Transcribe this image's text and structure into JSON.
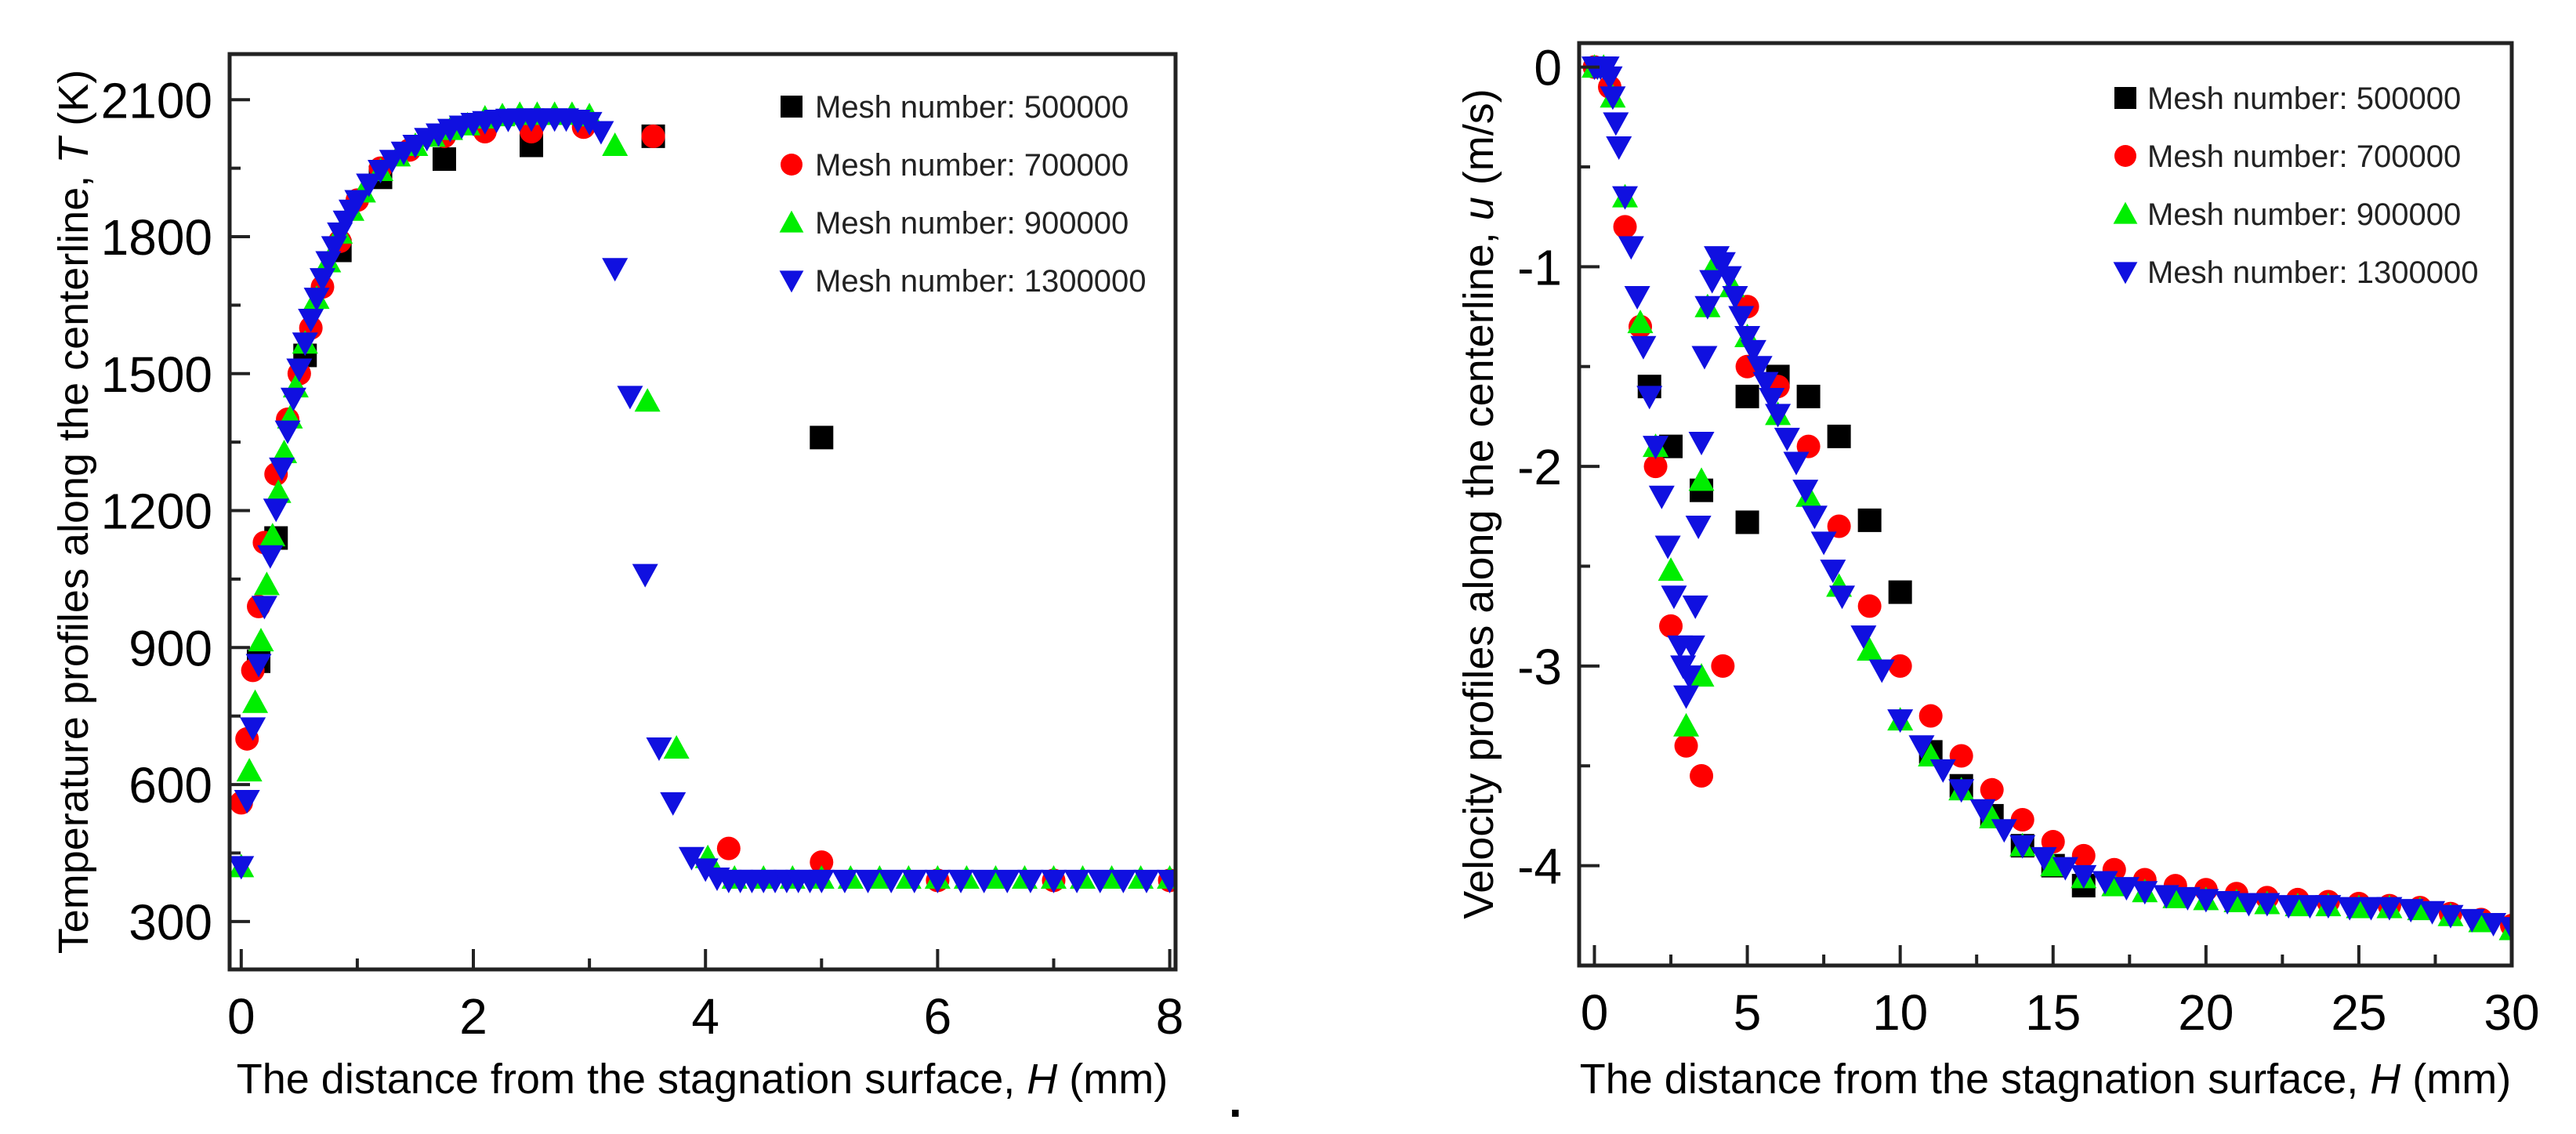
{
  "chart_data": [
    {
      "type": "scatter",
      "title": "",
      "xlabel": {
        "prefix": "The distance from the stagnation surface, ",
        "var": "H",
        "unit": " (mm)"
      },
      "ylabel": {
        "prefix": "Temperature profiles along the centerline, ",
        "var": "T",
        "unit": " (K)"
      },
      "xlim": [
        -0.1,
        8.05
      ],
      "ylim": [
        195,
        2200
      ],
      "xticks": [
        0,
        2,
        4,
        6,
        8
      ],
      "xticks_minor": [
        1,
        3,
        5,
        7
      ],
      "yticks": [
        300,
        600,
        900,
        1200,
        1500,
        1800,
        2100
      ],
      "yticks_minor": [
        450,
        750,
        1050,
        1350,
        1650,
        1950
      ],
      "grid": false,
      "legend_position": "top-right",
      "series": [
        {
          "name": "Mesh number: 500000",
          "marker": "square",
          "color": "#000000",
          "x": [
            0.15,
            0.3,
            0.55,
            0.85,
            1.2,
            1.75,
            2.5,
            3.55,
            5.0
          ],
          "y": [
            870,
            1140,
            1540,
            1770,
            1930,
            1970,
            2000,
            2020,
            1360
          ]
        },
        {
          "name": "Mesh number: 700000",
          "marker": "circle",
          "color": "#ff0000",
          "x": [
            0,
            0.05,
            0.1,
            0.15,
            0.2,
            0.3,
            0.4,
            0.5,
            0.6,
            0.7,
            0.85,
            1.0,
            1.2,
            1.45,
            1.75,
            2.1,
            2.5,
            2.95,
            3.55,
            4.2,
            5.0,
            6.0,
            7.0,
            8.0
          ],
          "y": [
            560,
            700,
            850,
            990,
            1130,
            1280,
            1400,
            1500,
            1600,
            1690,
            1790,
            1880,
            1950,
            1990,
            2020,
            2030,
            2030,
            2040,
            2020,
            460,
            430,
            390,
            390,
            390
          ]
        },
        {
          "name": "Mesh number: 900000",
          "marker": "triangle-up",
          "color": "#00ee00",
          "x": [
            0,
            0.07,
            0.12,
            0.17,
            0.22,
            0.27,
            0.32,
            0.37,
            0.42,
            0.47,
            0.55,
            0.65,
            0.75,
            0.85,
            0.95,
            1.05,
            1.2,
            1.35,
            1.5,
            1.65,
            1.8,
            1.95,
            2.1,
            2.25,
            2.4,
            2.55,
            2.7,
            2.85,
            3.0,
            3.22,
            3.5,
            3.75,
            4.02,
            4.25,
            4.5,
            4.75,
            5.0,
            5.25,
            5.5,
            5.75,
            6.0,
            6.25,
            6.5,
            6.75,
            7.0,
            7.25,
            7.5,
            7.75,
            8.0
          ],
          "y": [
            420,
            630,
            780,
            915,
            1038,
            1145,
            1240,
            1327,
            1403,
            1471,
            1567,
            1665,
            1745,
            1808,
            1858,
            1898,
            1945,
            1977,
            2000,
            2020,
            2035,
            2045,
            2060,
            2065,
            2068,
            2068,
            2068,
            2068,
            2065,
            2000,
            1440,
            680,
            440,
            395,
            395,
            395,
            395,
            395,
            395,
            395,
            395,
            395,
            395,
            395,
            395,
            395,
            395,
            395,
            395
          ]
        },
        {
          "name": "Mesh number: 1300000",
          "marker": "triangle-down",
          "color": "#1010e0",
          "x": [
            0,
            0.05,
            0.1,
            0.15,
            0.2,
            0.25,
            0.3,
            0.35,
            0.4,
            0.45,
            0.5,
            0.55,
            0.6,
            0.65,
            0.7,
            0.75,
            0.8,
            0.85,
            0.9,
            0.95,
            1.0,
            1.1,
            1.2,
            1.3,
            1.4,
            1.5,
            1.6,
            1.7,
            1.8,
            1.9,
            2.0,
            2.1,
            2.2,
            2.3,
            2.4,
            2.5,
            2.6,
            2.7,
            2.8,
            2.9,
            3.0,
            3.1,
            3.22,
            3.35,
            3.48,
            3.6,
            3.72,
            3.88,
            4.0,
            4.1,
            4.2,
            4.3,
            4.4,
            4.5,
            4.6,
            4.7,
            4.8,
            4.9,
            5.0,
            5.2,
            5.4,
            5.6,
            5.8,
            6.0,
            6.2,
            6.4,
            6.6,
            6.8,
            7.0,
            7.2,
            7.4,
            7.6,
            7.8,
            8.0
          ],
          "y": [
            420,
            565,
            724,
            863,
            990,
            1101,
            1203,
            1293,
            1374,
            1446,
            1510,
            1567,
            1619,
            1665,
            1708,
            1745,
            1778,
            1808,
            1834,
            1858,
            1879,
            1915,
            1945,
            1967,
            1985,
            2000,
            2015,
            2025,
            2035,
            2042,
            2048,
            2052,
            2055,
            2057,
            2058,
            2058,
            2058,
            2058,
            2058,
            2055,
            2050,
            2030,
            1730,
            1450,
            1060,
            680,
            560,
            440,
            415,
            395,
            390,
            390,
            390,
            390,
            390,
            390,
            390,
            390,
            390,
            390,
            390,
            390,
            390,
            390,
            390,
            390,
            390,
            390,
            390,
            390,
            390,
            390,
            390,
            390
          ]
        }
      ]
    },
    {
      "type": "scatter",
      "title": "",
      "xlabel": {
        "prefix": "The distance from the stagnation surface, ",
        "var": "H",
        "unit": " (mm)"
      },
      "ylabel": {
        "prefix": "Velocity profiles along the centerline, ",
        "var": "u",
        "unit": " (m/s)"
      },
      "xlim": [
        -0.5,
        30
      ],
      "ylim": [
        -4.5,
        0.12
      ],
      "xticks": [
        0,
        5,
        10,
        15,
        20,
        25,
        30
      ],
      "xticks_minor": [
        2.5,
        7.5,
        12.5,
        17.5,
        22.5,
        27.5
      ],
      "yticks": [
        0,
        -1,
        -2,
        -3,
        -4
      ],
      "yticks_minor": [
        -0.5,
        -1.5,
        -2.5,
        -3.5
      ],
      "grid": false,
      "legend_position": "top-right",
      "series": [
        {
          "name": "Mesh number: 500000",
          "marker": "square",
          "color": "#000000",
          "x": [
            1.8,
            2.5,
            3.5,
            5.0,
            5.0,
            6.0,
            7.0,
            8.0,
            9.0,
            10.0,
            11.0,
            12.0,
            13.0,
            14.0,
            15.0,
            16.0
          ],
          "y": [
            -1.6,
            -1.9,
            -2.12,
            -1.65,
            -2.28,
            -1.55,
            -1.65,
            -1.85,
            -2.27,
            -2.63,
            -3.43,
            -3.6,
            -3.75,
            -3.9,
            -4.0,
            -4.1
          ]
        },
        {
          "name": "Mesh number: 700000",
          "marker": "circle",
          "color": "#ff0000",
          "x": [
            0,
            0.5,
            1.0,
            1.5,
            2.0,
            2.5,
            3.0,
            3.5,
            4.2,
            5.0,
            5.0,
            6.0,
            7.0,
            8.0,
            9.0,
            10.0,
            11.0,
            12.0,
            13.0,
            14.0,
            15.0,
            16.0,
            17.0,
            18.0,
            19.0,
            20.0,
            21.0,
            22.0,
            23.0,
            24.0,
            25.0,
            26.0,
            27.0,
            28.0,
            29.0,
            30.0
          ],
          "y": [
            0,
            -0.1,
            -0.8,
            -1.3,
            -2.0,
            -2.8,
            -3.4,
            -3.55,
            -3.0,
            -1.2,
            -1.5,
            -1.6,
            -1.9,
            -2.3,
            -2.7,
            -3.0,
            -3.25,
            -3.45,
            -3.62,
            -3.77,
            -3.88,
            -3.95,
            -4.02,
            -4.07,
            -4.1,
            -4.12,
            -4.14,
            -4.16,
            -4.17,
            -4.18,
            -4.19,
            -4.2,
            -4.21,
            -4.24,
            -4.27,
            -4.3
          ]
        },
        {
          "name": "Mesh number: 900000",
          "marker": "triangle-up",
          "color": "#00ee00",
          "x": [
            0,
            0.3,
            0.6,
            1.0,
            1.5,
            2.0,
            2.5,
            3.0,
            3.5,
            3.5,
            3.7,
            4.0,
            4.5,
            5.0,
            6.0,
            7.0,
            8.0,
            9.0,
            10.0,
            11.0,
            12.0,
            13.0,
            14.0,
            15.0,
            16.0,
            17.0,
            18.0,
            19.0,
            20.0,
            21.0,
            22.0,
            23.0,
            24.0,
            25.0,
            26.0,
            27.0,
            28.0,
            29.0,
            30.0
          ],
          "y": [
            0,
            0,
            -0.15,
            -0.65,
            -1.28,
            -1.9,
            -2.52,
            -3.3,
            -3.05,
            -2.07,
            -1.2,
            -0.97,
            -1.1,
            -1.35,
            -1.74,
            -2.15,
            -2.6,
            -2.92,
            -3.27,
            -3.45,
            -3.62,
            -3.76,
            -3.9,
            -4.0,
            -4.06,
            -4.1,
            -4.13,
            -4.16,
            -4.17,
            -4.18,
            -4.19,
            -4.2,
            -4.2,
            -4.21,
            -4.21,
            -4.22,
            -4.25,
            -4.28,
            -4.32
          ]
        },
        {
          "name": "Mesh number: 1300000",
          "marker": "triangle-down",
          "color": "#1010e0",
          "x": [
            0,
            0.1,
            0.2,
            0.3,
            0.4,
            0.5,
            0.6,
            0.7,
            0.8,
            1.0,
            1.2,
            1.4,
            1.6,
            1.8,
            2.0,
            2.2,
            2.4,
            2.6,
            2.8,
            2.9,
            3.0,
            3.1,
            3.2,
            3.3,
            3.4,
            3.5,
            3.6,
            3.7,
            3.85,
            4.0,
            4.2,
            4.4,
            4.6,
            4.8,
            5.0,
            5.2,
            5.4,
            5.6,
            5.8,
            6.0,
            6.3,
            6.6,
            6.9,
            7.2,
            7.5,
            7.8,
            8.1,
            8.8,
            9.4,
            10.0,
            10.7,
            11.4,
            12.0,
            12.7,
            13.4,
            14.0,
            14.7,
            15.4,
            16.0,
            16.7,
            17.4,
            18.0,
            18.7,
            19.4,
            20.0,
            20.7,
            21.4,
            22.0,
            22.7,
            23.4,
            24.0,
            24.7,
            25.4,
            26.0,
            26.7,
            27.4,
            28.0,
            28.7,
            29.4,
            30.0
          ],
          "y": [
            0,
            0,
            0,
            0,
            0,
            -0.05,
            -0.15,
            -0.28,
            -0.4,
            -0.65,
            -0.9,
            -1.15,
            -1.4,
            -1.65,
            -1.9,
            -2.15,
            -2.4,
            -2.65,
            -2.9,
            -3.0,
            -3.15,
            -3.05,
            -2.9,
            -2.7,
            -2.3,
            -1.88,
            -1.45,
            -1.2,
            -1.07,
            -0.95,
            -0.98,
            -1.05,
            -1.15,
            -1.25,
            -1.35,
            -1.42,
            -1.5,
            -1.58,
            -1.66,
            -1.74,
            -1.86,
            -1.98,
            -2.12,
            -2.25,
            -2.38,
            -2.52,
            -2.65,
            -2.85,
            -3.02,
            -3.27,
            -3.4,
            -3.52,
            -3.62,
            -3.72,
            -3.82,
            -3.9,
            -3.96,
            -4.01,
            -4.05,
            -4.08,
            -4.11,
            -4.13,
            -4.15,
            -4.16,
            -4.17,
            -4.18,
            -4.19,
            -4.19,
            -4.2,
            -4.2,
            -4.2,
            -4.21,
            -4.21,
            -4.21,
            -4.22,
            -4.23,
            -4.25,
            -4.27,
            -4.29,
            -4.31
          ]
        }
      ]
    }
  ],
  "separator_mark": "."
}
